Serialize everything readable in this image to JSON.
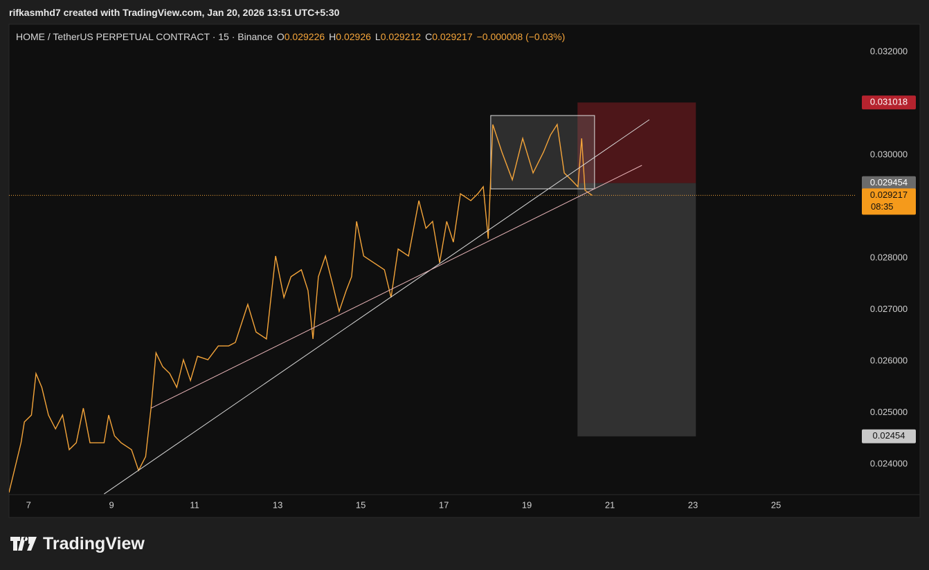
{
  "header": {
    "attribution": "rifkasmhd7 created with TradingView.com, Jan 20, 2026 13:51 UTC+5:30"
  },
  "brand": "TradingView",
  "chart_data": {
    "type": "line",
    "title": "HOME / TetherUS PERPETUAL CONTRACT · 15 · Binance",
    "ohlc": [
      {
        "label": "O",
        "value": 0.029226
      },
      {
        "label": "H",
        "value": 0.02926
      },
      {
        "label": "L",
        "value": 0.029212
      },
      {
        "label": "C",
        "value": 0.029217
      }
    ],
    "change": "−0.000008 (−0.03%)",
    "color": "#f5a53a",
    "x": [
      6.53,
      6.82,
      6.9,
      7.07,
      7.18,
      7.32,
      7.48,
      7.65,
      7.82,
      7.98,
      8.15,
      8.32,
      8.48,
      8.82,
      8.93,
      9.07,
      9.23,
      9.48,
      9.65,
      9.82,
      9.95,
      10.07,
      10.23,
      10.4,
      10.57,
      10.73,
      10.9,
      11.07,
      11.32,
      11.57,
      11.82,
      11.98,
      12.28,
      12.48,
      12.73,
      12.82,
      12.95,
      13.15,
      13.32,
      13.57,
      13.73,
      13.85,
      13.98,
      14.15,
      14.32,
      14.48,
      14.65,
      14.78,
      14.9,
      15.07,
      15.32,
      15.57,
      15.73,
      15.9,
      16.15,
      16.4,
      16.57,
      16.73,
      16.9,
      17.07,
      17.23,
      17.4,
      17.65,
      17.82,
      17.95,
      18.07,
      18.18,
      18.4,
      18.65,
      18.9,
      19.15,
      19.4,
      19.57,
      19.73,
      19.9,
      20.07,
      20.23,
      20.32,
      20.4,
      20.57
    ],
    "values": [
      0.02345,
      0.024416,
      0.024819,
      0.024953,
      0.025758,
      0.02549,
      0.024953,
      0.024685,
      0.024953,
      0.024282,
      0.024416,
      0.025087,
      0.024416,
      0.024416,
      0.024953,
      0.02455,
      0.024416,
      0.024282,
      0.023879,
      0.024148,
      0.025087,
      0.026161,
      0.025893,
      0.02576,
      0.02549,
      0.026027,
      0.025624,
      0.026094,
      0.026027,
      0.026295,
      0.026295,
      0.026362,
      0.027101,
      0.026564,
      0.02643,
      0.027101,
      0.02804,
      0.027235,
      0.027638,
      0.027772,
      0.027369,
      0.02643,
      0.027638,
      0.02804,
      0.027503,
      0.026966,
      0.027369,
      0.027638,
      0.028711,
      0.02804,
      0.027906,
      0.027772,
      0.027235,
      0.028175,
      0.02804,
      0.029114,
      0.028577,
      0.028711,
      0.027906,
      0.028711,
      0.028309,
      0.029248,
      0.029114,
      0.029248,
      0.029383,
      0.028376,
      0.030591,
      0.030054,
      0.029517,
      0.030322,
      0.029651,
      0.030054,
      0.030389,
      0.030591,
      0.029651,
      0.029517,
      0.029383,
      0.030322,
      0.029315,
      0.029217
    ],
    "xlim": [
      6.53,
      26.9
    ],
    "xticks": [
      7,
      9,
      11,
      13,
      15,
      17,
      19,
      21,
      23,
      25
    ],
    "ylim": [
      0.02341,
      0.032537
    ],
    "yticks": [
      {
        "value": 0.032,
        "label": "0.032000"
      },
      {
        "value": 0.03,
        "label": "0.030000"
      },
      {
        "value": 0.028,
        "label": "0.028000"
      },
      {
        "value": 0.027,
        "label": "0.027000"
      },
      {
        "value": 0.026,
        "label": "0.026000"
      },
      {
        "value": 0.025,
        "label": "0.025000"
      },
      {
        "value": 0.024,
        "label": "0.024000"
      }
    ],
    "grid": false,
    "trendlines": [
      {
        "x": [
          8.82,
          21.95
        ],
        "y": [
          0.023423,
          0.030685
        ],
        "color": "#d9d9d9"
      },
      {
        "x": [
          9.95,
          21.77
        ],
        "y": [
          0.025087,
          0.029799
        ],
        "color": "#e8b4b8"
      }
    ],
    "range_box": {
      "x": [
        18.13,
        20.63
      ],
      "y": [
        0.030765,
        0.029342
      ]
    },
    "position": {
      "x": [
        20.22,
        23.07
      ],
      "stop": 0.031018,
      "entry": 0.029454,
      "target": 0.02454
    },
    "last_price": {
      "value": 0.029217,
      "countdown": "08:35"
    }
  }
}
